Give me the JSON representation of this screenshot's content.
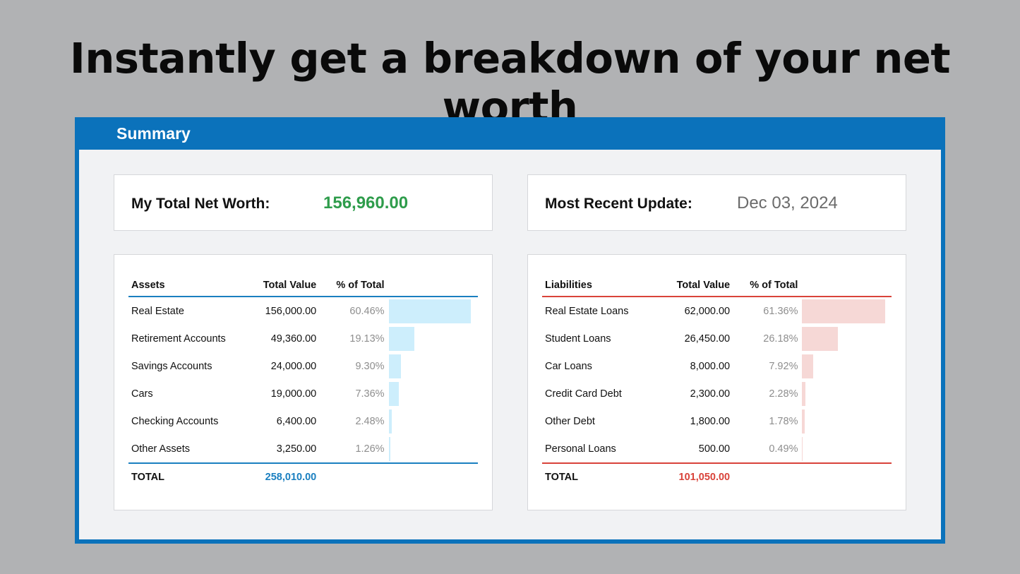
{
  "headline": "Instantly get a breakdown of your net worth",
  "panel_title": "Summary",
  "net_worth": {
    "label": "My Total Net Worth:",
    "value": "156,960.00",
    "color": "#2e9c4b"
  },
  "update": {
    "label": "Most Recent Update:",
    "value": "Dec 03, 2024",
    "color": "#6b6b6b"
  },
  "assets": {
    "headers": {
      "name": "Assets",
      "value": "Total Value",
      "pct": "% of Total"
    },
    "bar_color": "#cdeefc",
    "rows": [
      {
        "name": "Real Estate",
        "value": "156,000.00",
        "pct": "60.46%",
        "share": 60.46
      },
      {
        "name": "Retirement Accounts",
        "value": "49,360.00",
        "pct": "19.13%",
        "share": 19.13
      },
      {
        "name": "Savings Accounts",
        "value": "24,000.00",
        "pct": "9.30%",
        "share": 9.3
      },
      {
        "name": "Cars",
        "value": "19,000.00",
        "pct": "7.36%",
        "share": 7.36
      },
      {
        "name": "Checking Accounts",
        "value": "6,400.00",
        "pct": "2.48%",
        "share": 2.48
      },
      {
        "name": "Other Assets",
        "value": "3,250.00",
        "pct": "1.26%",
        "share": 1.26
      }
    ],
    "total_label": "TOTAL",
    "total_value": "258,010.00",
    "total_color": "#1a7fc0"
  },
  "liabilities": {
    "headers": {
      "name": "Liabilities",
      "value": "Total Value",
      "pct": "% of Total"
    },
    "bar_color": "#f6d8d6",
    "rows": [
      {
        "name": "Real Estate Loans",
        "value": "62,000.00",
        "pct": "61.36%",
        "share": 61.36
      },
      {
        "name": "Student Loans",
        "value": "26,450.00",
        "pct": "26.18%",
        "share": 26.18
      },
      {
        "name": "Car Loans",
        "value": "8,000.00",
        "pct": "7.92%",
        "share": 7.92
      },
      {
        "name": "Credit Card Debt",
        "value": "2,300.00",
        "pct": "2.28%",
        "share": 2.28
      },
      {
        "name": "Other Debt",
        "value": "1,800.00",
        "pct": "1.78%",
        "share": 1.78
      },
      {
        "name": "Personal Loans",
        "value": "500.00",
        "pct": "0.49%",
        "share": 0.49
      }
    ],
    "total_label": "TOTAL",
    "total_value": "101,050.00",
    "total_color": "#d9433a"
  }
}
